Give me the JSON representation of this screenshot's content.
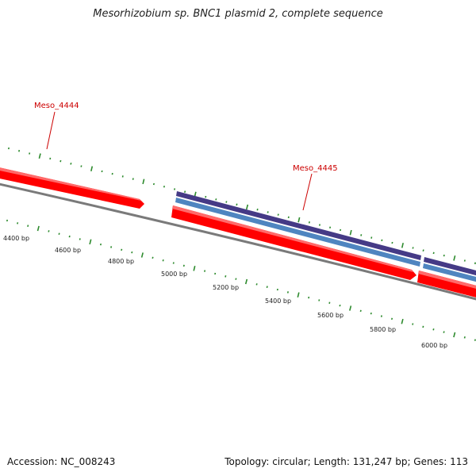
{
  "title": "Mesorhizobium sp. BNC1 plasmid 2, complete sequence",
  "footer": {
    "accession_label": "Accession:",
    "accession": "NC_008243",
    "topology_label": "Topology:",
    "topology": "circular",
    "length_label": "Length:",
    "length": "131,247 bp",
    "genes_label": "Genes:",
    "genes": "113"
  },
  "ruler_labels": [
    "4400 bp",
    "4600 bp",
    "4800 bp",
    "5000 bp",
    "5200 bp",
    "5400 bp",
    "5600 bp",
    "5800 bp",
    "6000 bp"
  ],
  "features": [
    {
      "label": "Meso_4444",
      "strand": "forward"
    },
    {
      "label": "Meso_4445",
      "strand": "forward"
    },
    {
      "label": "",
      "strand": "forward"
    }
  ],
  "colors": {
    "cds": "#ff0000",
    "cds_highlight": "#ff6a6a",
    "gene_dark": "#453a86",
    "gene_light": "#4f85c0",
    "backbone": "#7a7a7a",
    "tick": "#2e8b2e",
    "label": "#cc0000"
  }
}
